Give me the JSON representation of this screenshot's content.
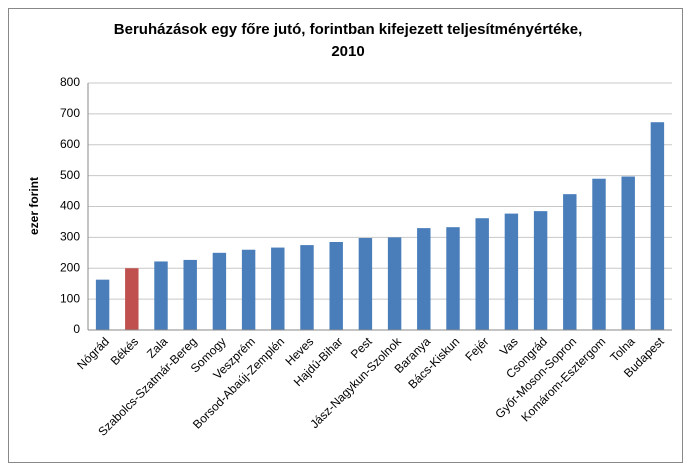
{
  "chart_data": {
    "type": "bar",
    "title": [
      "Beruházások egy főre jutó, forintban kifejezett teljesítményértéke,",
      "2010"
    ],
    "y_label": "ezer forint",
    "categories": [
      "Nógrád",
      "Békés",
      "Zala",
      "Szabolcs-Szatmár-Bereg",
      "Somogy",
      "Veszprém",
      "Borsod-Abaúj-Zemplén",
      "Heves",
      "Hajdú-Bihar",
      "Pest",
      "Jász-Nagykun-Szolnok",
      "Baranya",
      "Bács-Kiskun",
      "Fejér",
      "Vas",
      "Csongrád",
      "Győr-Moson-Sopron",
      "Komárom-Esztergom",
      "Tolna",
      "Budapest"
    ],
    "values": [
      163,
      200,
      222,
      227,
      250,
      260,
      267,
      275,
      285,
      298,
      300,
      330,
      333,
      362,
      377,
      385,
      440,
      490,
      497,
      673
    ],
    "colors": [
      "#4a7ebb",
      "#c0504d",
      "#4a7ebb",
      "#4a7ebb",
      "#4a7ebb",
      "#4a7ebb",
      "#4a7ebb",
      "#4a7ebb",
      "#4a7ebb",
      "#4a7ebb",
      "#4a7ebb",
      "#4a7ebb",
      "#4a7ebb",
      "#4a7ebb",
      "#4a7ebb",
      "#4a7ebb",
      "#4a7ebb",
      "#4a7ebb",
      "#4a7ebb",
      "#4a7ebb"
    ],
    "ylim": [
      0,
      800
    ],
    "yticks": [
      0,
      100,
      200,
      300,
      400,
      500,
      600,
      700,
      800
    ],
    "grid": true
  }
}
